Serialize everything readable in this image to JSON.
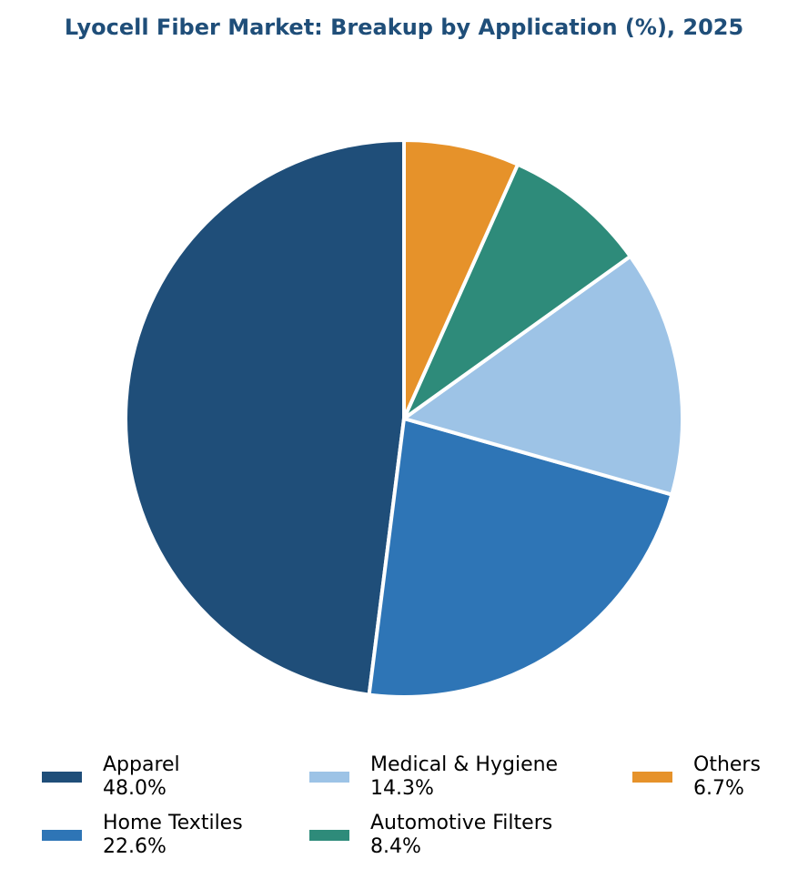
{
  "chart_data": {
    "type": "pie",
    "title": "Lyocell Fiber Market: Breakup by Application (%), 2025",
    "categories": [
      "Apparel",
      "Home Textiles",
      "Medical & Hygiene",
      "Automotive Filters",
      "Others"
    ],
    "values": [
      48.0,
      22.6,
      14.3,
      8.4,
      6.7
    ],
    "value_labels": [
      "48.0%",
      "22.6%",
      "14.3%",
      "8.4%",
      "6.7%"
    ],
    "colors": [
      "#1f4e79",
      "#2e75b6",
      "#9dc3e6",
      "#2e8b7a",
      "#e6922a"
    ]
  }
}
